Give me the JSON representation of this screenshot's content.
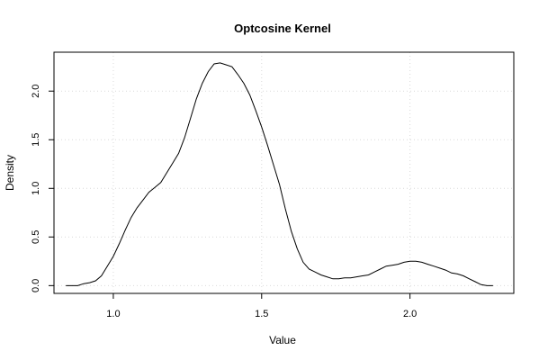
{
  "chart_data": {
    "type": "line",
    "title": "Optcosine Kernel",
    "xlabel": "Value",
    "ylabel": "Density",
    "xlim": [
      0.8,
      2.35
    ],
    "ylim": [
      -0.08,
      2.4
    ],
    "x_ticks": [
      1.0,
      1.5,
      2.0
    ],
    "x_tick_labels": [
      "1.0",
      "1.5",
      "2.0"
    ],
    "y_ticks": [
      0.0,
      0.5,
      1.0,
      1.5,
      2.0
    ],
    "y_tick_labels": [
      "0.0",
      "0.5",
      "1.0",
      "1.5",
      "2.0"
    ],
    "grid": true,
    "series": [
      {
        "x": [
          0.84,
          0.88,
          0.9,
          0.92,
          0.94,
          0.96,
          0.98,
          1.0,
          1.02,
          1.04,
          1.06,
          1.08,
          1.1,
          1.12,
          1.14,
          1.16,
          1.18,
          1.2,
          1.22,
          1.24,
          1.26,
          1.28,
          1.3,
          1.32,
          1.34,
          1.36,
          1.38,
          1.4,
          1.42,
          1.44,
          1.46,
          1.48,
          1.5,
          1.52,
          1.54,
          1.56,
          1.58,
          1.6,
          1.62,
          1.64,
          1.66,
          1.68,
          1.7,
          1.72,
          1.74,
          1.76,
          1.78,
          1.8,
          1.82,
          1.84,
          1.86,
          1.88,
          1.9,
          1.92,
          1.94,
          1.96,
          1.98,
          2.0,
          2.02,
          2.04,
          2.06,
          2.08,
          2.1,
          2.12,
          2.14,
          2.16,
          2.18,
          2.2,
          2.22,
          2.24,
          2.26,
          2.28
        ],
        "y": [
          0.0,
          0.0,
          0.02,
          0.03,
          0.05,
          0.1,
          0.2,
          0.3,
          0.43,
          0.57,
          0.7,
          0.8,
          0.88,
          0.96,
          1.01,
          1.06,
          1.16,
          1.26,
          1.36,
          1.52,
          1.72,
          1.92,
          2.08,
          2.2,
          2.28,
          2.29,
          2.27,
          2.25,
          2.17,
          2.08,
          1.96,
          1.8,
          1.63,
          1.44,
          1.24,
          1.04,
          0.79,
          0.56,
          0.38,
          0.24,
          0.17,
          0.14,
          0.11,
          0.09,
          0.07,
          0.07,
          0.08,
          0.08,
          0.09,
          0.1,
          0.11,
          0.14,
          0.17,
          0.2,
          0.21,
          0.22,
          0.24,
          0.25,
          0.25,
          0.24,
          0.22,
          0.2,
          0.18,
          0.16,
          0.13,
          0.12,
          0.1,
          0.07,
          0.04,
          0.01,
          0.0,
          0.0
        ]
      }
    ]
  }
}
